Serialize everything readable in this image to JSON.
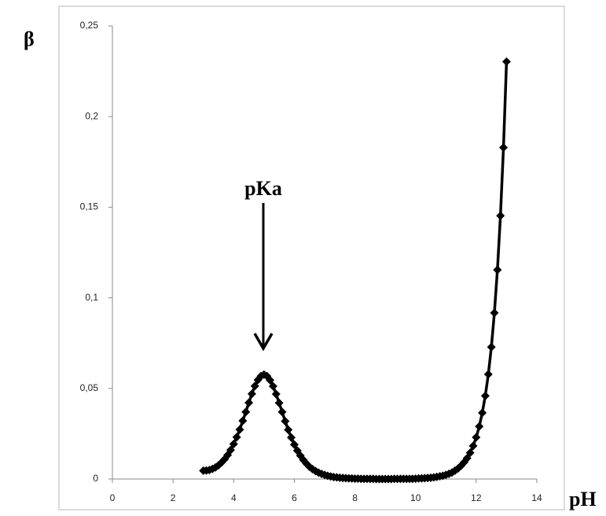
{
  "chart_data": {
    "type": "line",
    "y_label": "β",
    "x_label": "pH",
    "annotation": "pKa",
    "color": "#000000",
    "x": [
      3.0,
      3.1,
      3.2,
      3.3,
      3.4,
      3.5,
      3.6,
      3.7,
      3.8,
      3.9,
      4.0,
      4.1,
      4.2,
      4.3,
      4.4,
      4.5,
      4.6,
      4.7,
      4.8,
      4.9,
      5.0,
      5.1,
      5.2,
      5.3,
      5.4,
      5.5,
      5.6,
      5.7,
      5.8,
      5.9,
      6.0,
      6.1,
      6.2,
      6.3,
      6.4,
      6.5,
      6.6,
      6.7,
      6.8,
      6.9,
      7.0,
      7.1,
      7.2,
      7.3,
      7.4,
      7.5,
      7.6,
      7.7,
      7.8,
      7.9,
      8.0,
      8.1,
      8.2,
      8.3,
      8.4,
      8.5,
      8.6,
      8.7,
      8.8,
      8.9,
      9.0,
      9.1,
      9.2,
      9.3,
      9.4,
      9.5,
      9.6,
      9.7,
      9.8,
      9.9,
      10.0,
      10.1,
      10.2,
      10.3,
      10.4,
      10.5,
      10.6,
      10.7,
      10.8,
      10.9,
      11.0,
      11.1,
      11.2,
      11.3,
      11.4,
      11.5,
      11.6,
      11.7,
      11.8,
      11.9,
      12.0,
      12.1,
      12.2,
      12.3,
      12.4,
      12.5,
      12.6,
      12.7,
      12.8,
      12.9,
      13.0
    ],
    "values": [
      0.0046,
      0.0047,
      0.005,
      0.0056,
      0.0064,
      0.0076,
      0.0091,
      0.0109,
      0.0132,
      0.016,
      0.0193,
      0.0231,
      0.0273,
      0.0321,
      0.037,
      0.0421,
      0.047,
      0.0513,
      0.0547,
      0.0568,
      0.0576,
      0.0568,
      0.0546,
      0.0512,
      0.0469,
      0.042,
      0.037,
      0.0319,
      0.0272,
      0.0229,
      0.019,
      0.0157,
      0.0129,
      0.0105,
      0.0085,
      0.0068,
      0.0055,
      0.0044,
      0.0035,
      0.0028,
      0.0023,
      0.0018,
      0.0014,
      0.0011,
      0.0009,
      0.0007,
      0.0006,
      0.0005,
      0.0004,
      0.0003,
      0.0002,
      0.0002,
      0.0001,
      0.0001,
      0.0001,
      0.0001,
      0.0001,
      0,
      0,
      0,
      0,
      0,
      0,
      0.0001,
      0.0001,
      0.0001,
      0.0001,
      0.0001,
      0.0001,
      0.0001,
      0.0002,
      0.0003,
      0.0004,
      0.0005,
      0.0006,
      0.0007,
      0.0009,
      0.0012,
      0.0015,
      0.0018,
      0.0023,
      0.0029,
      0.0036,
      0.0046,
      0.0058,
      0.0073,
      0.0092,
      0.0115,
      0.0145,
      0.0183,
      0.023,
      0.029,
      0.0365,
      0.0459,
      0.0578,
      0.0728,
      0.0917,
      0.1154,
      0.1453,
      0.1829,
      0.2303
    ],
    "xlim": [
      0,
      14
    ],
    "xticks": [
      0,
      2,
      4,
      6,
      8,
      10,
      12,
      14
    ],
    "ylim": [
      0,
      0.25
    ],
    "yticks": [
      {
        "value": 0,
        "label": "0"
      },
      {
        "value": 0.05,
        "label": "0,05"
      },
      {
        "value": 0.1,
        "label": "0,1"
      },
      {
        "value": 0.15,
        "label": "0,15"
      },
      {
        "value": 0.2,
        "label": "0,2"
      },
      {
        "value": 0.25,
        "label": "0,25"
      }
    ]
  }
}
